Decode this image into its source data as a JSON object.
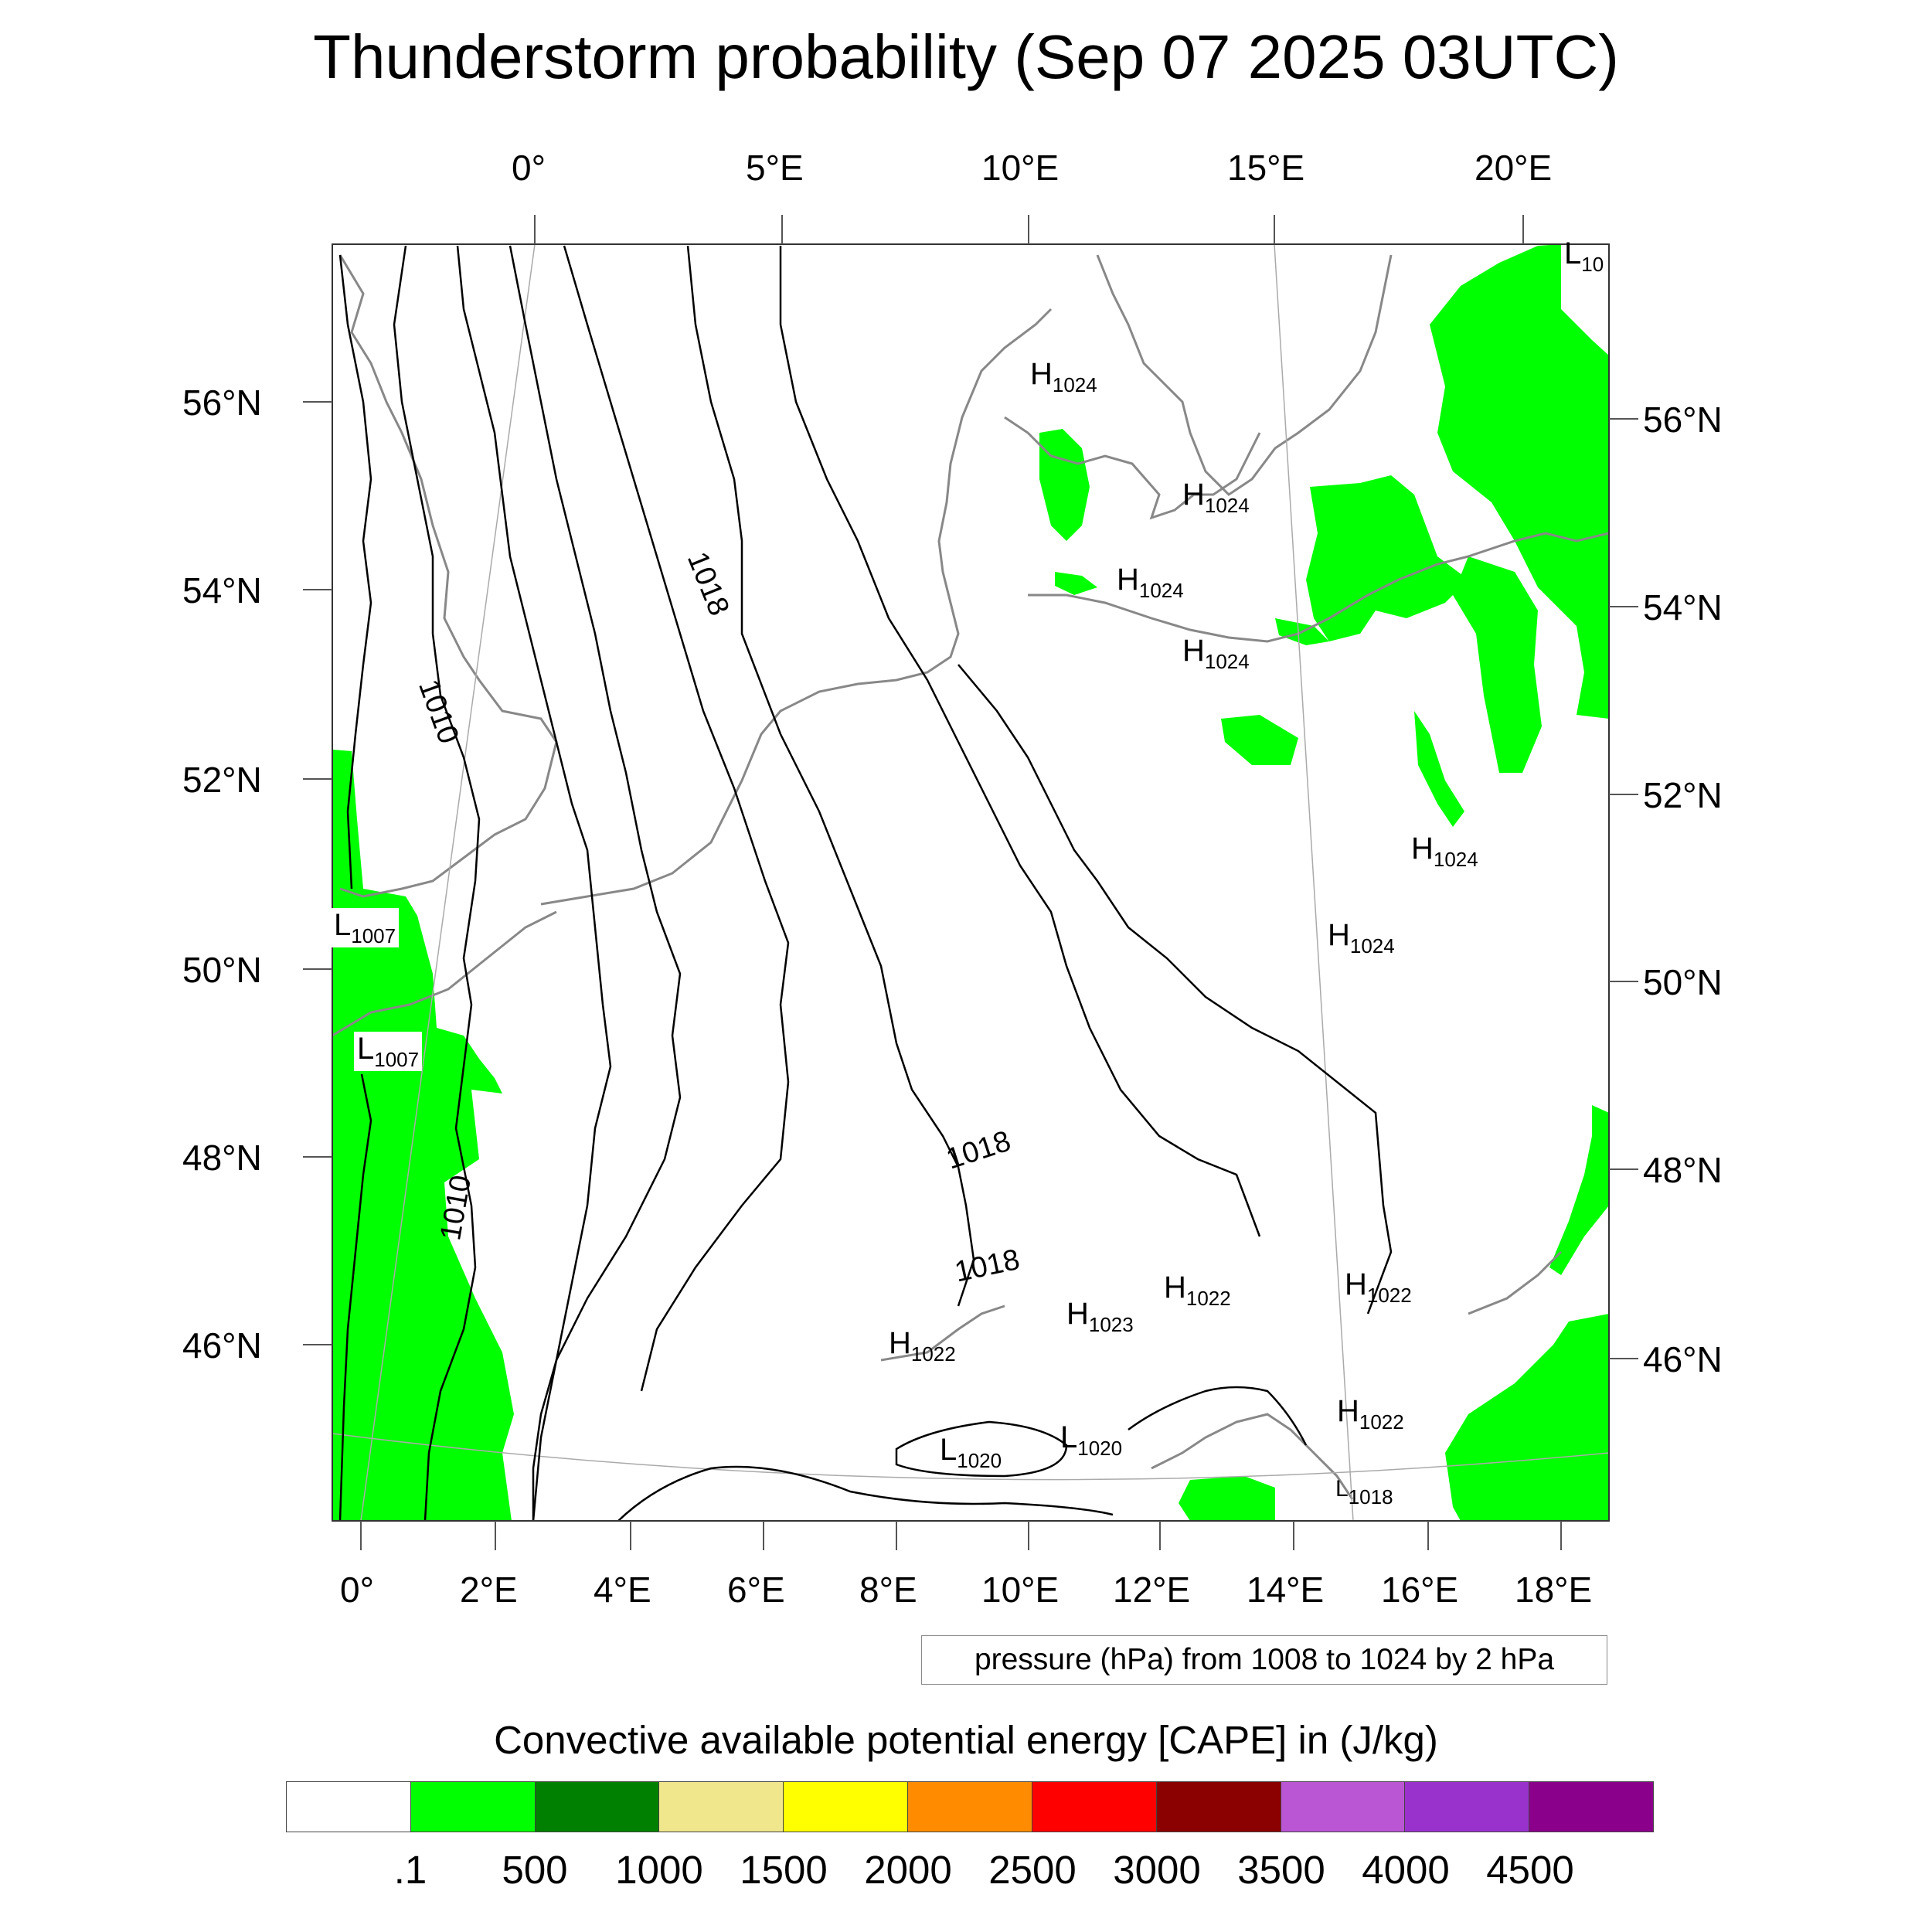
{
  "title": "Thunderstorm probability (Sep 07 2025 03UTC)",
  "top_lon_labels": [
    "0°",
    "5°E",
    "10°E",
    "15°E",
    "20°E"
  ],
  "bottom_lon_labels": [
    "0°",
    "2°E",
    "4°E",
    "6°E",
    "8°E",
    "10°E",
    "12°E",
    "14°E",
    "16°E",
    "18°E"
  ],
  "left_lat_labels": [
    "56°N",
    "54°N",
    "52°N",
    "50°N",
    "48°N",
    "46°N"
  ],
  "right_lat_labels": [
    "56°N",
    "54°N",
    "52°N",
    "50°N",
    "48°N",
    "46°N"
  ],
  "contour_note": "pressure (hPa) from 1008 to 1024 by 2 hPa",
  "isobar_labels": [
    "1010",
    "1018",
    "1018",
    "1018",
    "1010"
  ],
  "pressure_centers": [
    {
      "type": "L",
      "value": "10"
    },
    {
      "type": "H",
      "value": "1024"
    },
    {
      "type": "H",
      "value": "1024"
    },
    {
      "type": "H",
      "value": "1024"
    },
    {
      "type": "H",
      "value": "1024"
    },
    {
      "type": "H",
      "value": "1024"
    },
    {
      "type": "H",
      "value": "1024"
    },
    {
      "type": "L",
      "value": "1007"
    },
    {
      "type": "L",
      "value": "1007"
    },
    {
      "type": "H",
      "value": "1022"
    },
    {
      "type": "H",
      "value": "1023"
    },
    {
      "type": "H",
      "value": "1022"
    },
    {
      "type": "H",
      "value": "1022"
    },
    {
      "type": "H",
      "value": "1022"
    },
    {
      "type": "L",
      "value": "1020"
    },
    {
      "type": "L",
      "value": "1020"
    },
    {
      "type": "L",
      "value": "1018"
    }
  ],
  "colorbar": {
    "title": "Convective available potential energy [CAPE] in (J/kg)",
    "colors": [
      "#ffffff",
      "#00ff00",
      "#008000",
      "#f0e68c",
      "#ffff00",
      "#ff8c00",
      "#ff0000",
      "#8b0000",
      "#ba55d3",
      "#9932cc",
      "#8b008b"
    ],
    "labels": [
      ".1",
      "500",
      "1000",
      "1500",
      "2000",
      "2500",
      "3000",
      "3500",
      "4000",
      "4500"
    ]
  },
  "colors": {
    "cape_fill": "#00ff00",
    "coastline": "#888888",
    "isobar": "#000000"
  }
}
